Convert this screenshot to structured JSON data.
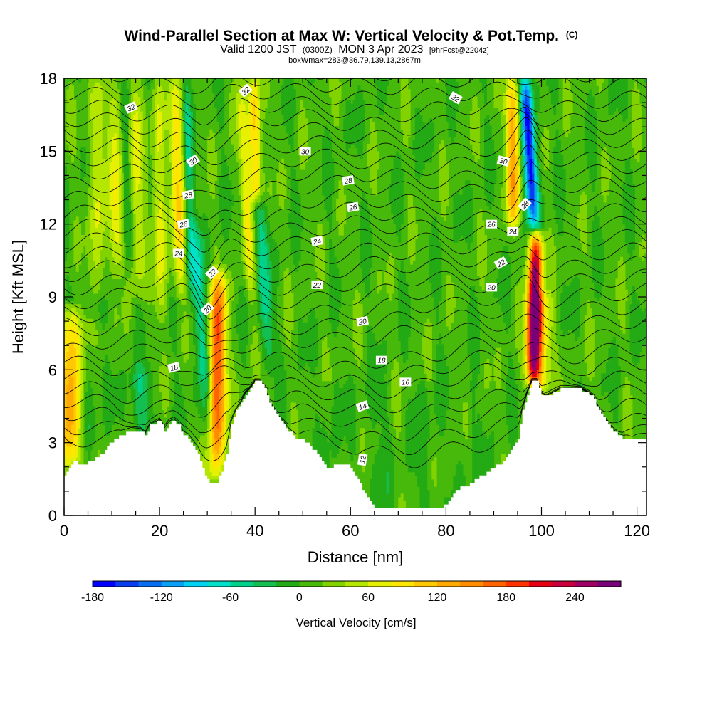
{
  "chart_data": {
    "type": "heatmap",
    "title": "Wind-Parallel Section at Max W: Vertical Velocity & Pot.Temp.",
    "title_suffix": "(C)",
    "subtitle_parts": {
      "valid": "Valid 1200 JST",
      "utc": "(0300Z)",
      "date": "MON 3 Apr 2023",
      "fcst": "[9hrFcst@2204z]"
    },
    "subtitle2": "boxWmax=283@36.79,139.13,2867m",
    "xlabel": "Distance [nm]",
    "ylabel": "Height [Kft MSL]",
    "xlim": [
      0,
      122
    ],
    "ylim": [
      0,
      18
    ],
    "x_ticks": [
      0,
      20,
      40,
      60,
      80,
      100,
      120
    ],
    "x_tick_labels": [
      "0",
      "20",
      "40",
      "60",
      "80",
      "100",
      "120"
    ],
    "y_ticks": [
      0,
      3,
      6,
      9,
      12,
      15,
      18
    ],
    "y_tick_labels": [
      "0",
      "3",
      "6",
      "9",
      "12",
      "15",
      "18"
    ],
    "colorbar": {
      "title": "Vertical Velocity [cm/s]",
      "min": -180,
      "max": 270,
      "step": 20,
      "tick_values": [
        -180,
        -120,
        -60,
        0,
        60,
        120,
        180,
        240
      ],
      "tick_labels": [
        "-180",
        "-120",
        "-60",
        "0",
        "60",
        "120",
        "180",
        "240"
      ],
      "colors": [
        "#0000ff",
        "#0a3cf0",
        "#0a6ef5",
        "#0aa0f5",
        "#00d2f0",
        "#00e1c8",
        "#00d28c",
        "#14be50",
        "#23aa14",
        "#46b90a",
        "#82d200",
        "#b4e600",
        "#e6f000",
        "#ffe600",
        "#ffc800",
        "#ffaa00",
        "#ff8c00",
        "#ff6400",
        "#ff3200",
        "#e60014",
        "#c8003c",
        "#a00064",
        "#780078"
      ]
    },
    "terrain_profile": [
      [
        0,
        1.7
      ],
      [
        1,
        2.0
      ],
      [
        2,
        2.2
      ],
      [
        4,
        2.1
      ],
      [
        6,
        2.3
      ],
      [
        8,
        2.6
      ],
      [
        9,
        2.9
      ],
      [
        10,
        3.0
      ],
      [
        11,
        3.2
      ],
      [
        12,
        3.3
      ],
      [
        13,
        3.4
      ],
      [
        14,
        3.5
      ],
      [
        16,
        3.5
      ],
      [
        17,
        3.3
      ],
      [
        18,
        3.7
      ],
      [
        19,
        3.8
      ],
      [
        20,
        3.9
      ],
      [
        21,
        3.5
      ],
      [
        22,
        3.8
      ],
      [
        23,
        3.9
      ],
      [
        24,
        3.7
      ],
      [
        25,
        3.3
      ],
      [
        26,
        3.2
      ],
      [
        27,
        2.9
      ],
      [
        28,
        2.6
      ],
      [
        29,
        1.9
      ],
      [
        30,
        1.5
      ],
      [
        31,
        1.3
      ],
      [
        32,
        1.4
      ],
      [
        33,
        1.8
      ],
      [
        34,
        2.6
      ],
      [
        35,
        3.8
      ],
      [
        36,
        4.3
      ],
      [
        37,
        4.6
      ],
      [
        38,
        5.0
      ],
      [
        39,
        5.2
      ],
      [
        40,
        5.5
      ],
      [
        41,
        5.5
      ],
      [
        42,
        5.2
      ],
      [
        43,
        4.6
      ],
      [
        44,
        4.3
      ],
      [
        45,
        4.0
      ],
      [
        46,
        3.8
      ],
      [
        47,
        3.5
      ],
      [
        48,
        3.3
      ],
      [
        49,
        3.1
      ],
      [
        50,
        3.1
      ],
      [
        51,
        3.0
      ],
      [
        52,
        2.7
      ],
      [
        53,
        2.6
      ],
      [
        54,
        2.3
      ],
      [
        55,
        2.0
      ],
      [
        56,
        2.0
      ],
      [
        57,
        2.1
      ],
      [
        58,
        2.1
      ],
      [
        59,
        2.1
      ],
      [
        60,
        2.0
      ],
      [
        61,
        1.7
      ],
      [
        62,
        1.3
      ],
      [
        63,
        0.9
      ],
      [
        64,
        0.6
      ],
      [
        65,
        0.3
      ],
      [
        66,
        0.3
      ],
      [
        68,
        0.3
      ],
      [
        70,
        0.3
      ],
      [
        72,
        0.3
      ],
      [
        74,
        0.3
      ],
      [
        76,
        0.3
      ],
      [
        78,
        0.3
      ],
      [
        80,
        0.4
      ],
      [
        81,
        0.7
      ],
      [
        82,
        1.0
      ],
      [
        83,
        1.2
      ],
      [
        84,
        1.2
      ],
      [
        85,
        1.3
      ],
      [
        86,
        1.5
      ],
      [
        87,
        1.6
      ],
      [
        88,
        1.7
      ],
      [
        89,
        1.8
      ],
      [
        90,
        2.0
      ],
      [
        91,
        2.1
      ],
      [
        92,
        2.2
      ],
      [
        93,
        2.5
      ],
      [
        94,
        2.8
      ],
      [
        95,
        3.2
      ],
      [
        96,
        4.3
      ],
      [
        97,
        5.0
      ],
      [
        98,
        5.5
      ],
      [
        99,
        5.5
      ],
      [
        100,
        5.0
      ],
      [
        101,
        4.9
      ],
      [
        102,
        5.0
      ],
      [
        103,
        5.1
      ],
      [
        104,
        5.2
      ],
      [
        106,
        5.2
      ],
      [
        108,
        5.2
      ],
      [
        110,
        5.0
      ],
      [
        111,
        4.8
      ],
      [
        112,
        4.3
      ],
      [
        113,
        4.0
      ],
      [
        114,
        3.7
      ],
      [
        115,
        3.5
      ],
      [
        116,
        3.3
      ],
      [
        117,
        3.2
      ],
      [
        118,
        3.2
      ],
      [
        119,
        3.1
      ],
      [
        120,
        3.2
      ],
      [
        122,
        3.2
      ]
    ],
    "updraft_bands": [
      {
        "x": 1.5,
        "y_bot": 2.0,
        "y_top": 8.5,
        "w": 120,
        "width": 2.5,
        "tilt": 0.0
      },
      {
        "x": 7.0,
        "y_bot": 9.0,
        "y_top": 18.0,
        "w": 60,
        "width": 1.5,
        "tilt": -0.1
      },
      {
        "x": 11.0,
        "y_bot": 10.0,
        "y_top": 18.0,
        "w": 70,
        "width": 1.5,
        "tilt": -0.1
      },
      {
        "x": 15.0,
        "y_bot": 9.0,
        "y_top": 18.0,
        "w": 60,
        "width": 1.5,
        "tilt": -0.1
      },
      {
        "x": 20.0,
        "y_bot": 8.0,
        "y_top": 18.0,
        "w": 60,
        "width": 1.5,
        "tilt": -0.1
      },
      {
        "x": 24.0,
        "y_bot": 9.0,
        "y_top": 18.0,
        "w": 80,
        "width": 1.8,
        "tilt": -0.1
      },
      {
        "x": 32.0,
        "y_bot": 1.5,
        "y_top": 10.0,
        "w": 170,
        "width": 2.0,
        "tilt": 0.1
      },
      {
        "x": 38.0,
        "y_bot": 9.0,
        "y_top": 18.0,
        "w": 60,
        "width": 1.2,
        "tilt": -0.25
      },
      {
        "x": 40.0,
        "y_bot": 13.0,
        "y_top": 18.0,
        "w": 110,
        "width": 1.2,
        "tilt": -0.1
      },
      {
        "x": 94.0,
        "y_bot": 12.0,
        "y_top": 18.0,
        "w": 120,
        "width": 1.5,
        "tilt": 0.0
      },
      {
        "x": 98.5,
        "y_bot": 5.5,
        "y_top": 11.5,
        "w": 270,
        "width": 1.5,
        "tilt": 0.1
      },
      {
        "x": 100.0,
        "y_bot": 5.0,
        "y_top": 9.0,
        "w": 90,
        "width": 2.0,
        "tilt": 0.0
      }
    ],
    "downdraft_bands": [
      {
        "x": 97.5,
        "y_bot": 12.0,
        "y_top": 18.0,
        "w": -180,
        "width": 1.3,
        "tilt": -0.3
      },
      {
        "x": 29.0,
        "y_bot": 2.0,
        "y_top": 12.0,
        "w": -70,
        "width": 1.5,
        "tilt": -0.3
      },
      {
        "x": 26.0,
        "y_bot": 9.0,
        "y_top": 18.0,
        "w": -60,
        "width": 1.2,
        "tilt": -0.1
      },
      {
        "x": 13.0,
        "y_bot": 10.0,
        "y_top": 18.0,
        "w": -40,
        "width": 1.2,
        "tilt": -0.1
      },
      {
        "x": 42.0,
        "y_bot": 6.0,
        "y_top": 13.0,
        "w": -50,
        "width": 1.5,
        "tilt": -0.3
      },
      {
        "x": 5.0,
        "y_bot": 3.0,
        "y_top": 7.0,
        "w": -30,
        "width": 2.0,
        "tilt": 0.0
      },
      {
        "x": 16.0,
        "y_bot": 3.5,
        "y_top": 6.0,
        "w": -40,
        "width": 2.5,
        "tilt": 0.0
      }
    ],
    "isentropes": [
      {
        "label": "12",
        "y0": 2.5,
        "dip": 0.0
      },
      {
        "label": "14",
        "y0": 4.2,
        "dip": 0.5
      },
      {
        "label": "16",
        "y0": 5.3,
        "dip": 0.3
      },
      {
        "label": "18",
        "y0": 6.3,
        "dip": 0.2
      },
      {
        "label": "20",
        "y0": 8.0,
        "dip": 0.0
      },
      {
        "label": "22",
        "y0": 9.5,
        "dip": 0.0
      },
      {
        "label": "24",
        "y0": 11.2,
        "dip": 0.0
      },
      {
        "label": "26",
        "y0": 12.5,
        "dip": 0.0
      },
      {
        "label": "28",
        "y0": 13.8,
        "dip": 0.0
      },
      {
        "label": "30",
        "y0": 15.0,
        "dip": 0.0
      },
      {
        "label": "32",
        "y0": 17.2,
        "dip": 0.0
      }
    ],
    "isentrope_labels": [
      {
        "text": "32",
        "x": 14,
        "y": 16.8,
        "rot": -25
      },
      {
        "text": "32",
        "x": 38,
        "y": 17.5,
        "rot": -40
      },
      {
        "text": "32",
        "x": 82,
        "y": 17.2,
        "rot": 30
      },
      {
        "text": "30",
        "x": 27,
        "y": 14.6,
        "rot": -35
      },
      {
        "text": "30",
        "x": 50.5,
        "y": 15.0,
        "rot": 0
      },
      {
        "text": "30",
        "x": 92,
        "y": 14.6,
        "rot": 15
      },
      {
        "text": "28",
        "x": 26,
        "y": 13.2,
        "rot": -10
      },
      {
        "text": "28",
        "x": 59.5,
        "y": 13.8,
        "rot": -10
      },
      {
        "text": "28",
        "x": 96.5,
        "y": 12.8,
        "rot": -50
      },
      {
        "text": "26",
        "x": 25,
        "y": 12.0,
        "rot": -10
      },
      {
        "text": "26",
        "x": 60.5,
        "y": 12.7,
        "rot": -10
      },
      {
        "text": "26",
        "x": 89.5,
        "y": 12.0,
        "rot": 0
      },
      {
        "text": "24",
        "x": 94,
        "y": 11.7,
        "rot": 0
      },
      {
        "text": "24",
        "x": 24,
        "y": 10.8,
        "rot": 0
      },
      {
        "text": "24",
        "x": 53,
        "y": 11.3,
        "rot": -10
      },
      {
        "text": "22",
        "x": 31,
        "y": 10.0,
        "rot": -45
      },
      {
        "text": "22",
        "x": 53,
        "y": 9.5,
        "rot": 0
      },
      {
        "text": "22",
        "x": 91.5,
        "y": 10.4,
        "rot": -30
      },
      {
        "text": "20",
        "x": 30,
        "y": 8.5,
        "rot": -45
      },
      {
        "text": "20",
        "x": 62.5,
        "y": 8.0,
        "rot": -10
      },
      {
        "text": "20",
        "x": 89.5,
        "y": 9.4,
        "rot": 0
      },
      {
        "text": "18",
        "x": 23,
        "y": 6.1,
        "rot": -15
      },
      {
        "text": "18",
        "x": 66.5,
        "y": 6.4,
        "rot": 0
      },
      {
        "text": "16",
        "x": 71.5,
        "y": 5.5,
        "rot": 0
      },
      {
        "text": "14",
        "x": 62.5,
        "y": 4.5,
        "rot": -20
      },
      {
        "text": "12",
        "x": 62.5,
        "y": 2.3,
        "rot": -80
      }
    ]
  }
}
